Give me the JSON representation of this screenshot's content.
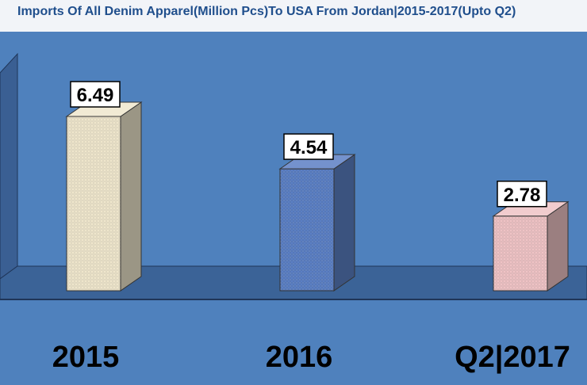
{
  "chart_data": {
    "type": "bar",
    "title": "Imports Of All Denim Apparel(Million Pcs)To USA From Jordan|2015-2017(Upto Q2)",
    "categories": [
      "2015",
      "2016",
      "Q2|2017"
    ],
    "values": [
      6.49,
      4.54,
      2.78
    ],
    "data_labels": [
      "6.49",
      "4.54",
      "2.78"
    ],
    "bar_colors": [
      "#efe6cc",
      "#5b7fc4",
      "#efc3c5"
    ],
    "xlabel": "",
    "ylabel": "",
    "grid": false,
    "legend": "none",
    "style": "3d-column"
  },
  "colors": {
    "background": "#4f81bd",
    "floor": "#3b6397",
    "back_wall": "#4f81bd",
    "title_band": "#f2f4f8",
    "title_text": "#1f4e8c"
  }
}
